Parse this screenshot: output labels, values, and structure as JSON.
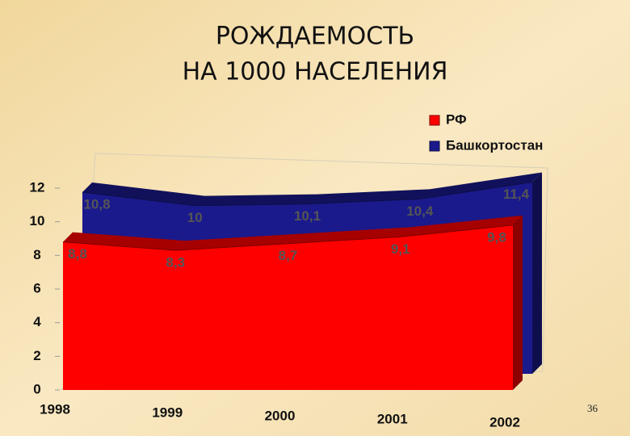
{
  "chart_data": {
    "type": "area3d",
    "title": [
      "РОЖДАЕМОСТЬ",
      "НА 1000 НАСЕЛЕНИЯ"
    ],
    "categories": [
      "1998",
      "1999",
      "2000",
      "2001",
      "2002"
    ],
    "series": [
      {
        "name": "РФ",
        "color": "#ff0000",
        "values": [
          8.8,
          8.3,
          8.7,
          9.1,
          9.8
        ],
        "value_labels": [
          "8,8",
          "8,3",
          "8,7",
          "9,1",
          "9,8"
        ]
      },
      {
        "name": "Башкортостан",
        "color": "#1a1a8c",
        "values": [
          10.8,
          10,
          10.1,
          10.4,
          11.4
        ],
        "value_labels": [
          "10,8",
          "10",
          "10,1",
          "10,4",
          "11,4"
        ]
      }
    ],
    "ylim": [
      0,
      12
    ],
    "yticks": [
      0,
      2,
      4,
      6,
      8,
      10,
      12
    ],
    "legend": "top-right",
    "slide_number": 36
  }
}
